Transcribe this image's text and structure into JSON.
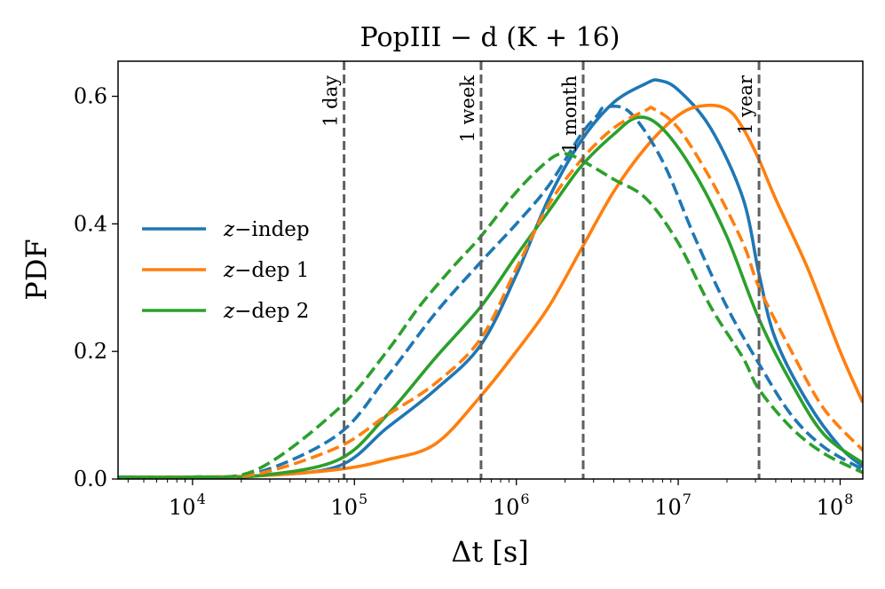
{
  "chart_data": {
    "type": "line",
    "title": "PopIII − d (K + 16)",
    "xlabel": "Δt [s]",
    "ylabel": "PDF",
    "xscale": "log",
    "xlim_log10": [
      3.54,
      8.14
    ],
    "ylim": [
      0,
      0.655
    ],
    "yticks": [
      {
        "value": 0.0,
        "label": "0.0"
      },
      {
        "value": 0.2,
        "label": "0.2"
      },
      {
        "value": 0.4,
        "label": "0.4"
      },
      {
        "value": 0.6,
        "label": "0.6"
      }
    ],
    "xticks": [
      {
        "log10": 4,
        "base": "10",
        "exp": "4"
      },
      {
        "log10": 5,
        "base": "10",
        "exp": "5"
      },
      {
        "log10": 6,
        "base": "10",
        "exp": "6"
      },
      {
        "log10": 7,
        "base": "10",
        "exp": "7"
      },
      {
        "log10": 8,
        "base": "10",
        "exp": "8"
      }
    ],
    "vlines": [
      {
        "label": "1 day",
        "x_log10": 4.936
      },
      {
        "label": "1 week",
        "x_log10": 5.782
      },
      {
        "label": "1 month",
        "x_log10": 6.413
      },
      {
        "label": "1 year",
        "x_log10": 7.499
      }
    ],
    "legend": {
      "position": "center-left",
      "entries": [
        {
          "prefix": "z",
          "suffix": "−indep",
          "color": "#1f77b4"
        },
        {
          "prefix": "z",
          "suffix": "−dep 1",
          "color": "#ff7f0e"
        },
        {
          "prefix": "z",
          "suffix": "−dep 2",
          "color": "#2ca02c"
        }
      ]
    },
    "series": [
      {
        "name": "z−indep",
        "style": "solid",
        "color": "#1f77b4",
        "points": [
          [
            3.54,
            0.003
          ],
          [
            4.0,
            0.003
          ],
          [
            4.4,
            0.005
          ],
          [
            4.9,
            0.02
          ],
          [
            5.2,
            0.08
          ],
          [
            5.5,
            0.14
          ],
          [
            5.78,
            0.21
          ],
          [
            6.0,
            0.32
          ],
          [
            6.2,
            0.44
          ],
          [
            6.4,
            0.53
          ],
          [
            6.6,
            0.59
          ],
          [
            6.8,
            0.62
          ],
          [
            6.88,
            0.625
          ],
          [
            7.0,
            0.61
          ],
          [
            7.2,
            0.55
          ],
          [
            7.4,
            0.44
          ],
          [
            7.5,
            0.32
          ],
          [
            7.6,
            0.22
          ],
          [
            7.8,
            0.12
          ],
          [
            8.0,
            0.05
          ],
          [
            8.14,
            0.02
          ]
        ]
      },
      {
        "name": "z−dep 1",
        "style": "solid",
        "color": "#ff7f0e",
        "points": [
          [
            3.54,
            0.003
          ],
          [
            4.0,
            0.003
          ],
          [
            4.4,
            0.005
          ],
          [
            4.9,
            0.015
          ],
          [
            5.2,
            0.03
          ],
          [
            5.5,
            0.055
          ],
          [
            5.78,
            0.13
          ],
          [
            6.0,
            0.2
          ],
          [
            6.2,
            0.27
          ],
          [
            6.4,
            0.36
          ],
          [
            6.6,
            0.45
          ],
          [
            6.8,
            0.52
          ],
          [
            7.0,
            0.57
          ],
          [
            7.15,
            0.585
          ],
          [
            7.3,
            0.58
          ],
          [
            7.4,
            0.55
          ],
          [
            7.5,
            0.5
          ],
          [
            7.6,
            0.44
          ],
          [
            7.8,
            0.33
          ],
          [
            8.0,
            0.2
          ],
          [
            8.14,
            0.12
          ]
        ]
      },
      {
        "name": "z−dep 2",
        "style": "solid",
        "color": "#2ca02c",
        "points": [
          [
            3.54,
            0.003
          ],
          [
            4.0,
            0.003
          ],
          [
            4.4,
            0.005
          ],
          [
            4.9,
            0.03
          ],
          [
            5.2,
            0.1
          ],
          [
            5.5,
            0.19
          ],
          [
            5.78,
            0.27
          ],
          [
            6.0,
            0.35
          ],
          [
            6.2,
            0.42
          ],
          [
            6.4,
            0.49
          ],
          [
            6.6,
            0.54
          ],
          [
            6.75,
            0.567
          ],
          [
            6.9,
            0.55
          ],
          [
            7.1,
            0.48
          ],
          [
            7.3,
            0.38
          ],
          [
            7.5,
            0.25
          ],
          [
            7.7,
            0.15
          ],
          [
            7.9,
            0.07
          ],
          [
            8.14,
            0.025
          ]
        ]
      },
      {
        "name": "z−indep (dashed)",
        "style": "dashed",
        "color": "#1f77b4",
        "points": [
          [
            3.54,
            0.003
          ],
          [
            4.0,
            0.003
          ],
          [
            4.4,
            0.01
          ],
          [
            4.9,
            0.07
          ],
          [
            5.2,
            0.16
          ],
          [
            5.5,
            0.26
          ],
          [
            5.78,
            0.34
          ],
          [
            6.0,
            0.4
          ],
          [
            6.2,
            0.46
          ],
          [
            6.4,
            0.54
          ],
          [
            6.5,
            0.57
          ],
          [
            6.55,
            0.583
          ],
          [
            6.7,
            0.575
          ],
          [
            6.9,
            0.5
          ],
          [
            7.1,
            0.38
          ],
          [
            7.3,
            0.27
          ],
          [
            7.5,
            0.18
          ],
          [
            7.7,
            0.1
          ],
          [
            7.9,
            0.05
          ],
          [
            8.14,
            0.015
          ]
        ]
      },
      {
        "name": "z−dep 1 (dashed)",
        "style": "dashed",
        "color": "#ff7f0e",
        "points": [
          [
            3.54,
            0.003
          ],
          [
            4.0,
            0.003
          ],
          [
            4.4,
            0.008
          ],
          [
            4.9,
            0.05
          ],
          [
            5.2,
            0.1
          ],
          [
            5.5,
            0.15
          ],
          [
            5.78,
            0.22
          ],
          [
            6.0,
            0.33
          ],
          [
            6.2,
            0.43
          ],
          [
            6.4,
            0.5
          ],
          [
            6.6,
            0.55
          ],
          [
            6.8,
            0.578
          ],
          [
            6.85,
            0.58
          ],
          [
            7.0,
            0.55
          ],
          [
            7.2,
            0.47
          ],
          [
            7.4,
            0.37
          ],
          [
            7.5,
            0.3
          ],
          [
            7.7,
            0.2
          ],
          [
            7.9,
            0.11
          ],
          [
            8.14,
            0.045
          ]
        ]
      },
      {
        "name": "z−dep 2 (dashed)",
        "style": "dashed",
        "color": "#2ca02c",
        "points": [
          [
            3.54,
            0.003
          ],
          [
            4.0,
            0.003
          ],
          [
            4.4,
            0.015
          ],
          [
            4.9,
            0.11
          ],
          [
            5.2,
            0.2
          ],
          [
            5.4,
            0.27
          ],
          [
            5.6,
            0.33
          ],
          [
            5.78,
            0.38
          ],
          [
            6.0,
            0.45
          ],
          [
            6.2,
            0.5
          ],
          [
            6.3,
            0.51
          ],
          [
            6.4,
            0.5
          ],
          [
            6.6,
            0.47
          ],
          [
            6.8,
            0.44
          ],
          [
            7.0,
            0.37
          ],
          [
            7.2,
            0.27
          ],
          [
            7.4,
            0.19
          ],
          [
            7.5,
            0.14
          ],
          [
            7.7,
            0.08
          ],
          [
            7.9,
            0.04
          ],
          [
            8.14,
            0.01
          ]
        ]
      }
    ]
  }
}
